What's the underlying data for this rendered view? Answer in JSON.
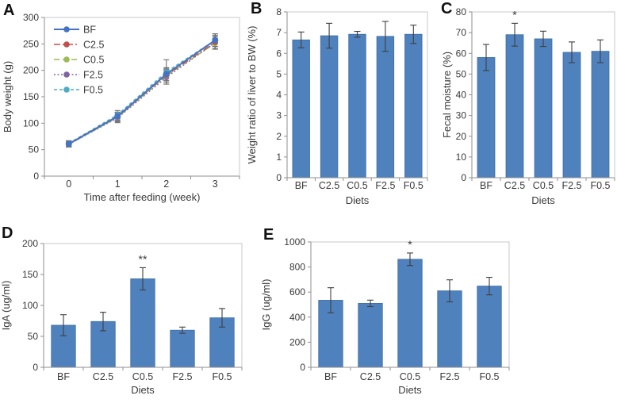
{
  "figure": {
    "background": "#ffffff"
  },
  "palette": {
    "bar_fill": "#4f81bd",
    "bar_edge": "#3d6da5",
    "axis": "#8f8f8f",
    "plot_border": "#c9c9c9",
    "text": "#3a3a3a",
    "error_bar": "#3f3f3f",
    "error_line_chart": "#6e6e6e",
    "annotation": "#3a3a3a"
  },
  "chart_data": [
    {
      "id": "A",
      "panel_label": "A",
      "type": "line",
      "title": "",
      "xlabel": "Time after feeding (week)",
      "ylabel": "Body weight (g)",
      "x_tick_labels": [
        "0",
        "1",
        "2",
        "3"
      ],
      "ylim": [
        0,
        300
      ],
      "yticks": [
        0,
        50,
        100,
        150,
        200,
        250,
        300
      ],
      "grid": false,
      "legend_position": "top-left",
      "series": [
        {
          "name": "BF",
          "color": "#4472c4",
          "line_style": "solid",
          "values": [
            61,
            113,
            193,
            257
          ],
          "errors": [
            5,
            8,
            12,
            12
          ]
        },
        {
          "name": "C2.5",
          "color": "#c0504d",
          "line_style": "dash_dot",
          "values": [
            61,
            112,
            191,
            253
          ],
          "errors": [
            5,
            8,
            13,
            13
          ]
        },
        {
          "name": "C0.5",
          "color": "#9bbb59",
          "line_style": "dash",
          "values": [
            60,
            111,
            190,
            251
          ],
          "errors": [
            5,
            8,
            12,
            10
          ]
        },
        {
          "name": "F2.5",
          "color": "#8064a2",
          "line_style": "dot",
          "values": [
            60,
            110,
            187,
            252
          ],
          "errors": [
            5,
            9,
            13,
            12
          ]
        },
        {
          "name": "F0.5",
          "color": "#4bacc6",
          "line_style": "short_dash",
          "values": [
            62,
            116,
            197,
            257
          ],
          "errors": [
            5,
            8,
            23,
            12
          ]
        }
      ]
    },
    {
      "id": "B",
      "panel_label": "B",
      "type": "bar",
      "title": "",
      "xlabel": "Diets",
      "ylabel": "Weight ratio of liver to BW (%)",
      "categories": [
        "BF",
        "C2.5",
        "C0.5",
        "F2.5",
        "F0.5"
      ],
      "values": [
        6.65,
        6.85,
        6.92,
        6.82,
        6.92
      ],
      "errors": [
        0.38,
        0.6,
        0.14,
        0.72,
        0.44
      ],
      "ylim": [
        0,
        8
      ],
      "yticks": [
        0,
        1,
        2,
        3,
        4,
        5,
        6,
        7,
        8
      ],
      "grid": false,
      "annotations": []
    },
    {
      "id": "C",
      "panel_label": "C",
      "type": "bar",
      "title": "",
      "xlabel": "Diets",
      "ylabel": "Fecal moisture (%)",
      "categories": [
        "BF",
        "C2.5",
        "C0.5",
        "F2.5",
        "F0.5"
      ],
      "values": [
        58,
        69,
        67,
        60.5,
        61
      ],
      "errors": [
        6.3,
        5.5,
        3.7,
        5,
        5.5
      ],
      "ylim": [
        0,
        80
      ],
      "yticks": [
        0,
        10,
        20,
        30,
        40,
        50,
        60,
        70,
        80
      ],
      "grid": false,
      "annotations": [
        {
          "category": "C2.5",
          "text": "*"
        }
      ]
    },
    {
      "id": "D",
      "panel_label": "D",
      "type": "bar",
      "title": "",
      "xlabel": "Diets",
      "ylabel": "IgA (ug/ml)",
      "categories": [
        "BF",
        "C2.5",
        "C0.5",
        "F2.5",
        "F0.5"
      ],
      "values": [
        68,
        74,
        143,
        60,
        80
      ],
      "errors": [
        17,
        15,
        18,
        5,
        15
      ],
      "ylim": [
        0,
        200
      ],
      "yticks": [
        0,
        50,
        100,
        150,
        200
      ],
      "grid": false,
      "annotations": [
        {
          "category": "C0.5",
          "text": "**"
        }
      ]
    },
    {
      "id": "E",
      "panel_label": "E",
      "type": "bar",
      "title": "",
      "xlabel": "Diets",
      "ylabel": "IgG (ug/ml)",
      "categories": [
        "BF",
        "C2.5",
        "C0.5",
        "F2.5",
        "F0.5"
      ],
      "values": [
        535,
        510,
        862,
        610,
        648
      ],
      "errors": [
        100,
        26,
        50,
        88,
        70
      ],
      "ylim": [
        0,
        1000
      ],
      "yticks": [
        0,
        200,
        400,
        600,
        800,
        1000
      ],
      "grid": false,
      "annotations": [
        {
          "category": "C0.5",
          "text": "*"
        }
      ]
    }
  ]
}
